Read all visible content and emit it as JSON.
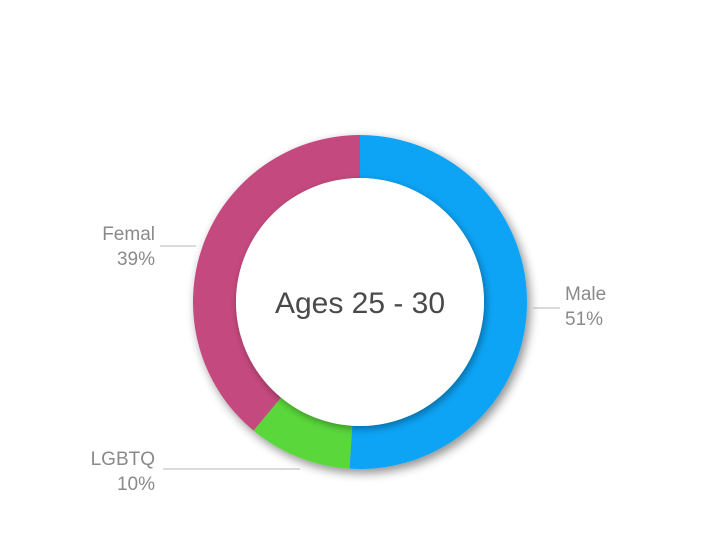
{
  "chart_data": {
    "type": "pie",
    "style": "donut",
    "center_label": "Ages 25 - 30",
    "slices": [
      {
        "label": "Male",
        "percent_label": "51%",
        "value": 51,
        "color": "#0aa4f6"
      },
      {
        "label": "LGBTQ",
        "percent_label": "10%",
        "value": 10,
        "color": "#5ad83a"
      },
      {
        "label": "Femal",
        "percent_label": "39%",
        "value": 39,
        "color": "#c4497e"
      }
    ],
    "start_angle_deg": 0,
    "direction": "clockwise",
    "legend": "none",
    "label_placement": "outside with leader lines"
  }
}
